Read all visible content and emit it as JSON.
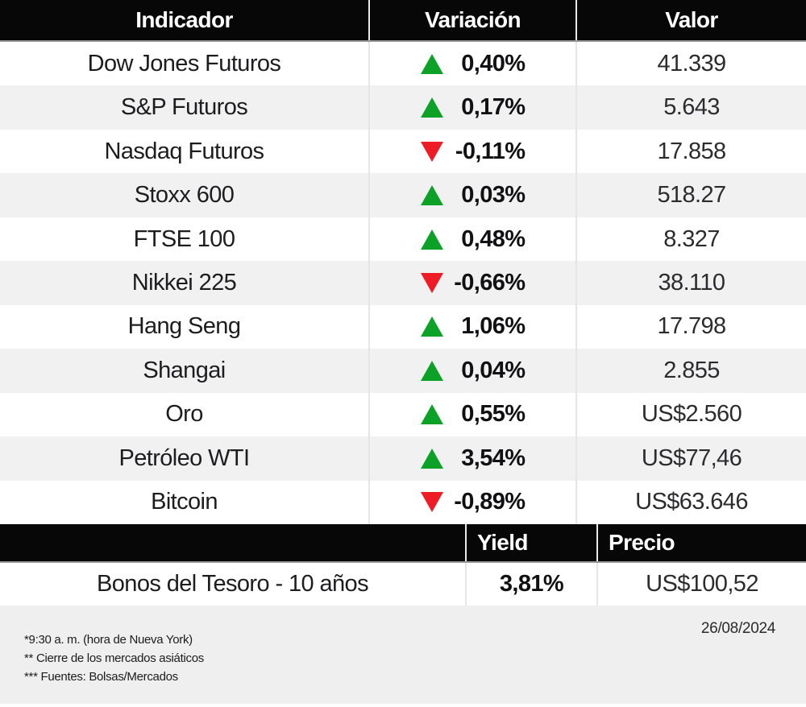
{
  "colors": {
    "header_bg": "#070707",
    "row_alt_bg": "#f1f1f2",
    "footer_bg": "#efefef",
    "up_green": "#0da227",
    "down_red": "#ee1c25"
  },
  "table_markets": {
    "header": {
      "indicator": "Indicador",
      "variation": "Variación",
      "value": "Valor"
    },
    "rows": [
      {
        "name": "Dow Jones Futuros",
        "direction": "up",
        "variation": "0,40%",
        "value": "41.339"
      },
      {
        "name": "S&P Futuros",
        "direction": "up",
        "variation": "0,17%",
        "value": "5.643"
      },
      {
        "name": "Nasdaq Futuros",
        "direction": "down",
        "variation": "-0,11%",
        "value": "17.858"
      },
      {
        "name": "Stoxx 600",
        "direction": "up",
        "variation": "0,03%",
        "value": "518.27"
      },
      {
        "name": "FTSE 100",
        "direction": "up",
        "variation": "0,48%",
        "value": "8.327"
      },
      {
        "name": "Nikkei 225",
        "direction": "down",
        "variation": "-0,66%",
        "value": "38.110"
      },
      {
        "name": "Hang Seng",
        "direction": "up",
        "variation": "1,06%",
        "value": "17.798"
      },
      {
        "name": "Shangai",
        "direction": "up",
        "variation": "0,04%",
        "value": "2.855"
      },
      {
        "name": "Oro",
        "direction": "up",
        "variation": "0,55%",
        "value": "US$2.560"
      },
      {
        "name": "Petróleo WTI",
        "direction": "up",
        "variation": "3,54%",
        "value": "US$77,46"
      },
      {
        "name": "Bitcoin",
        "direction": "down",
        "variation": "-0,89%",
        "value": "US$63.646"
      }
    ]
  },
  "table_bonds": {
    "header": {
      "yield": "Yield",
      "price": "Precio"
    },
    "row": {
      "name": "Bonos del Tesoro - 10 años",
      "yield": "3,81%",
      "price": "US$100,52"
    }
  },
  "footer": {
    "date": "26/08/2024",
    "notes": [
      "*9:30 a. m. (hora de Nueva York)",
      "** Cierre de los mercados asiáticos",
      "*** Fuentes: Bolsas/Mercados"
    ]
  },
  "chart_data": [
    {
      "type": "table",
      "title": "Indicadores de mercado",
      "columns": [
        "Indicador",
        "Variación",
        "Valor"
      ],
      "rows": [
        [
          "Dow Jones Futuros",
          "+0,40%",
          "41.339"
        ],
        [
          "S&P Futuros",
          "+0,17%",
          "5.643"
        ],
        [
          "Nasdaq Futuros",
          "-0,11%",
          "17.858"
        ],
        [
          "Stoxx 600",
          "+0,03%",
          "518.27"
        ],
        [
          "FTSE 100",
          "+0,48%",
          "8.327"
        ],
        [
          "Nikkei 225",
          "-0,66%",
          "38.110"
        ],
        [
          "Hang Seng",
          "+1,06%",
          "17.798"
        ],
        [
          "Shangai",
          "+0,04%",
          "2.855"
        ],
        [
          "Oro",
          "+0,55%",
          "US$2.560"
        ],
        [
          "Petróleo WTI",
          "+3,54%",
          "US$77,46"
        ],
        [
          "Bitcoin",
          "-0,89%",
          "US$63.646"
        ]
      ]
    },
    {
      "type": "table",
      "title": "Bonos",
      "columns": [
        "",
        "Yield",
        "Precio"
      ],
      "rows": [
        [
          "Bonos del Tesoro - 10 años",
          "3,81%",
          "US$100,52"
        ]
      ]
    }
  ]
}
